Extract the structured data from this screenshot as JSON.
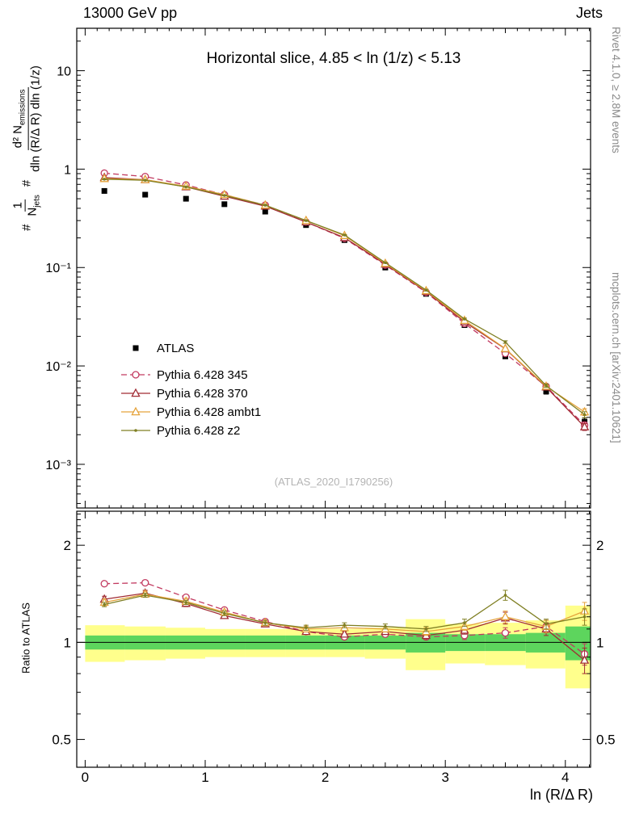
{
  "header": {
    "left": "13000 GeV pp",
    "right": "Jets"
  },
  "side_labels": {
    "rivet": "Rivet 4.1.0, ≥ 2.8M events",
    "mcplots": "mcplots.cern.ch [arXiv:2401.10621]"
  },
  "main_panel": {
    "title": "Horizontal slice, 4.85 < ln (1/z) < 5.13",
    "watermark": "(ATLAS_2020_I1790256)",
    "ylabel": {
      "hash1": "#",
      "frac1_num": "1",
      "frac1_den_main": "N",
      "frac1_den_sub": "jets",
      "hash2": "#",
      "frac2_num_main": "d² N",
      "frac2_num_sub": "emissions",
      "frac2_den": "dln (R/Δ R) dln (1/z)"
    }
  },
  "chart_data": {
    "type": "line",
    "title": "Horizontal slice, 4.85 < ln (1/z) < 5.13",
    "xlabel": "ln (R/Δ R)",
    "xlim": [
      -0.07,
      4.21
    ],
    "x": [
      0.16,
      0.5,
      0.84,
      1.16,
      1.5,
      1.84,
      2.16,
      2.5,
      2.84,
      3.16,
      3.5,
      3.84,
      4.16
    ],
    "xticks": [
      {
        "v": 0,
        "label": "0"
      },
      {
        "v": 1,
        "label": "1"
      },
      {
        "v": 2,
        "label": "2"
      },
      {
        "v": 3,
        "label": "3"
      },
      {
        "v": 4,
        "label": "4"
      }
    ],
    "main": {
      "scale": "log",
      "ylim": [
        0.00036,
        27
      ],
      "yticks": [
        {
          "v": 10,
          "label": "10"
        },
        {
          "v": 1,
          "label": "1"
        },
        {
          "v": 0.1,
          "label": "10⁻¹"
        },
        {
          "v": 0.01,
          "label": "10⁻²"
        },
        {
          "v": 0.001,
          "label": "10⁻³"
        }
      ],
      "series": [
        {
          "name": "ATLAS",
          "marker": "filled-square",
          "line": "none",
          "color": "#000000",
          "values": [
            0.6,
            0.55,
            0.5,
            0.44,
            0.37,
            0.27,
            0.19,
            0.1,
            0.054,
            0.026,
            0.0125,
            0.0055,
            0.0027
          ],
          "rel_err": [
            0.03,
            0.03,
            0.03,
            0.03,
            0.03,
            0.03,
            0.03,
            0.03,
            0.04,
            0.04,
            0.05,
            0.06,
            0.09
          ]
        },
        {
          "name": "Pythia 6.428 345",
          "marker": "open-circle",
          "line": "dashed",
          "color": "#c23a60",
          "values": [
            0.91,
            0.84,
            0.69,
            0.55,
            0.43,
            0.29,
            0.198,
            0.106,
            0.056,
            0.027,
            0.0134,
            0.0062,
            0.0025
          ],
          "rel_err": [
            0.01,
            0.01,
            0.01,
            0.01,
            0.01,
            0.01,
            0.01,
            0.01,
            0.02,
            0.02,
            0.03,
            0.05,
            0.08
          ]
        },
        {
          "name": "Pythia 6.428 370",
          "marker": "open-triangle",
          "line": "solid",
          "color": "#a02a33",
          "values": [
            0.82,
            0.78,
            0.66,
            0.53,
            0.42,
            0.29,
            0.201,
            0.108,
            0.057,
            0.028,
            0.0149,
            0.0061,
            0.0024
          ],
          "rel_err": [
            0.01,
            0.01,
            0.01,
            0.01,
            0.01,
            0.01,
            0.01,
            0.01,
            0.02,
            0.02,
            0.03,
            0.05,
            0.08
          ]
        },
        {
          "name": "Pythia 6.428 ambt1",
          "marker": "open-triangle",
          "line": "solid",
          "color": "#e5a33c",
          "values": [
            0.8,
            0.78,
            0.67,
            0.55,
            0.43,
            0.3,
            0.211,
            0.11,
            0.058,
            0.029,
            0.015,
            0.0062,
            0.0034
          ],
          "rel_err": [
            0.01,
            0.01,
            0.01,
            0.01,
            0.01,
            0.01,
            0.01,
            0.01,
            0.02,
            0.02,
            0.03,
            0.05,
            0.08
          ]
        },
        {
          "name": "Pythia 6.428 z2",
          "marker": "dot",
          "line": "solid",
          "color": "#7f7f23",
          "values": [
            0.79,
            0.77,
            0.66,
            0.54,
            0.43,
            0.3,
            0.214,
            0.112,
            0.059,
            0.03,
            0.0175,
            0.0063,
            0.0032
          ],
          "rel_err": [
            0.01,
            0.01,
            0.01,
            0.01,
            0.01,
            0.01,
            0.01,
            0.01,
            0.02,
            0.02,
            0.03,
            0.04,
            0.07
          ]
        }
      ]
    },
    "ratio": {
      "ylabel": "Ratio to ATLAS",
      "scale": "log",
      "ylim": [
        0.41,
        2.55
      ],
      "yticks": [
        {
          "v": 2,
          "label": "2"
        },
        {
          "v": 1,
          "label": "1"
        },
        {
          "v": 0.5,
          "label": "0.5"
        }
      ],
      "bands": {
        "edges": [
          0.0,
          0.33,
          0.67,
          1.0,
          1.33,
          1.67,
          2.0,
          2.33,
          2.67,
          3.0,
          3.33,
          3.67,
          4.0,
          4.33
        ],
        "yellow": {
          "color": "#ffff8c",
          "lo": [
            0.87,
            0.88,
            0.89,
            0.9,
            0.9,
            0.9,
            0.9,
            0.89,
            0.82,
            0.86,
            0.85,
            0.83,
            0.72
          ],
          "hi": [
            1.13,
            1.12,
            1.11,
            1.1,
            1.1,
            1.1,
            1.1,
            1.11,
            1.18,
            1.14,
            1.15,
            1.17,
            1.3
          ]
        },
        "green": {
          "color": "#5dd55d",
          "lo": [
            0.95,
            0.95,
            0.95,
            0.95,
            0.95,
            0.95,
            0.95,
            0.95,
            0.93,
            0.94,
            0.94,
            0.93,
            0.88
          ],
          "hi": [
            1.05,
            1.05,
            1.05,
            1.05,
            1.05,
            1.05,
            1.05,
            1.05,
            1.07,
            1.06,
            1.06,
            1.07,
            1.12
          ]
        }
      },
      "series": [
        {
          "name": "Pythia 6.428 345",
          "marker": "open-circle",
          "line": "dashed",
          "color": "#c23a60",
          "values": [
            1.52,
            1.53,
            1.38,
            1.26,
            1.16,
            1.08,
            1.04,
            1.06,
            1.04,
            1.05,
            1.07,
            1.12,
            0.92
          ],
          "err": [
            0.02,
            0.02,
            0.02,
            0.02,
            0.02,
            0.02,
            0.02,
            0.02,
            0.02,
            0.03,
            0.04,
            0.05,
            0.07
          ]
        },
        {
          "name": "Pythia 6.428 370",
          "marker": "open-triangle",
          "line": "solid",
          "color": "#a02a33",
          "values": [
            1.36,
            1.42,
            1.32,
            1.21,
            1.14,
            1.08,
            1.06,
            1.08,
            1.05,
            1.09,
            1.19,
            1.1,
            0.88
          ],
          "err": [
            0.03,
            0.03,
            0.03,
            0.02,
            0.02,
            0.02,
            0.02,
            0.02,
            0.03,
            0.03,
            0.05,
            0.05,
            0.08
          ]
        },
        {
          "name": "Pythia 6.428 ambt1",
          "marker": "open-triangle",
          "line": "solid",
          "color": "#e5a33c",
          "values": [
            1.33,
            1.41,
            1.34,
            1.24,
            1.15,
            1.1,
            1.11,
            1.1,
            1.08,
            1.12,
            1.2,
            1.12,
            1.25
          ],
          "err": [
            0.03,
            0.03,
            0.03,
            0.02,
            0.02,
            0.02,
            0.02,
            0.02,
            0.03,
            0.03,
            0.05,
            0.05,
            0.08
          ]
        },
        {
          "name": "Pythia 6.428 z2",
          "marker": "dot",
          "line": "solid",
          "color": "#7f7f23",
          "values": [
            1.31,
            1.4,
            1.33,
            1.23,
            1.15,
            1.11,
            1.13,
            1.12,
            1.1,
            1.15,
            1.4,
            1.14,
            1.2
          ],
          "err": [
            0.02,
            0.02,
            0.02,
            0.02,
            0.02,
            0.02,
            0.02,
            0.02,
            0.02,
            0.03,
            0.05,
            0.04,
            0.07
          ]
        }
      ]
    }
  }
}
